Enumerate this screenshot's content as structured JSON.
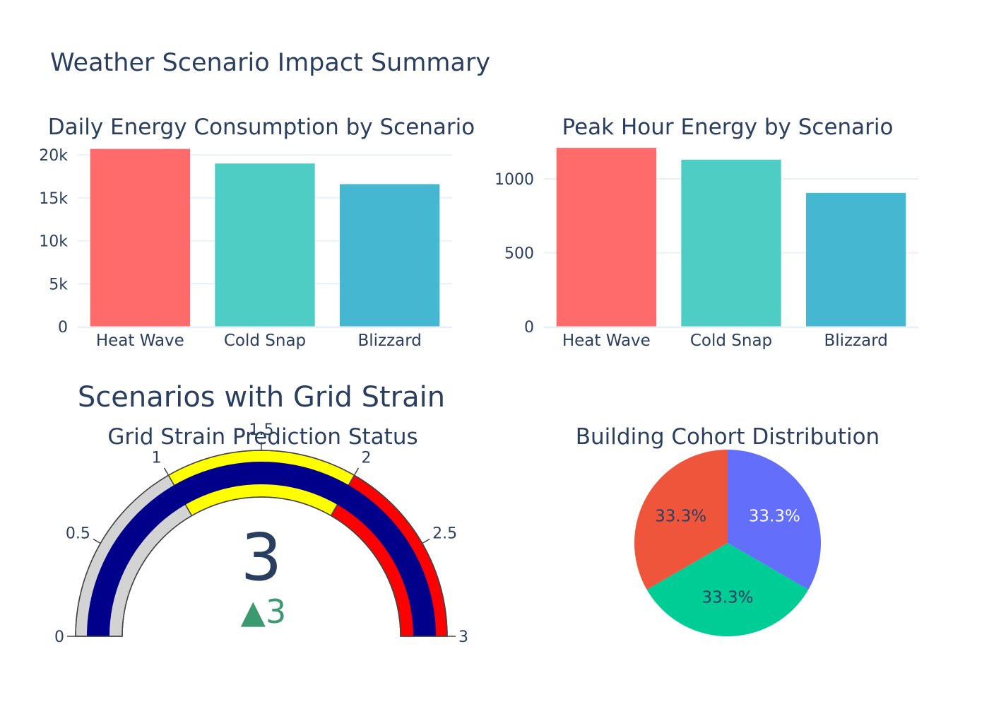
{
  "title": "Weather Scenario Impact Summary",
  "chart_data": [
    {
      "type": "bar",
      "title": "Daily Energy Consumption by Scenario",
      "categories": [
        "Heat Wave",
        "Cold Snap",
        "Blizzard"
      ],
      "values": [
        20700,
        19000,
        16600
      ],
      "colors": [
        "#ff6b6b",
        "#4ecdc4",
        "#45b7d1"
      ],
      "ylim": [
        0,
        21000
      ],
      "yticks": [
        0,
        5000,
        10000,
        15000,
        20000
      ],
      "ytick_labels": [
        "0",
        "5k",
        "10k",
        "15k",
        "20k"
      ],
      "grid": true
    },
    {
      "type": "bar",
      "title": "Peak Hour Energy by Scenario",
      "categories": [
        "Heat Wave",
        "Cold Snap",
        "Blizzard"
      ],
      "values": [
        1210,
        1130,
        905
      ],
      "colors": [
        "#ff6b6b",
        "#4ecdc4",
        "#45b7d1"
      ],
      "ylim": [
        0,
        1220
      ],
      "yticks": [
        0,
        500,
        1000
      ],
      "ytick_labels": [
        "0",
        "500",
        "1000"
      ],
      "grid": true
    },
    {
      "type": "gauge",
      "title": "Scenarios with Grid Strain",
      "subtitle": "Grid Strain Prediction Status",
      "value": 3,
      "value_label": "3",
      "delta_label": "▲3",
      "range": [
        0,
        3
      ],
      "ticks": [
        0,
        0.5,
        1,
        1.5,
        2,
        2.5,
        3
      ],
      "tick_labels": [
        "0",
        "0.5",
        "1",
        "1.5",
        "2",
        "2.5",
        "3"
      ],
      "steps": [
        {
          "range": [
            0,
            1
          ],
          "color": "#d3d3d3"
        },
        {
          "range": [
            1,
            2
          ],
          "color": "#ffff00"
        },
        {
          "range": [
            2,
            3
          ],
          "color": "#ff0000"
        }
      ],
      "bar_color": "#00008b",
      "delta_color": "#3d9970"
    },
    {
      "type": "pie",
      "title": "Building Cohort Distribution",
      "values": [
        1,
        1,
        1
      ],
      "colors": [
        "#636efa",
        "#00cc96",
        "#ef553b"
      ],
      "text_colors": [
        "#ffffff",
        "#2a3f5f",
        "#2a3f5f"
      ],
      "labels_text": [
        "33.3%",
        "33.3%",
        "33.3%"
      ]
    }
  ]
}
